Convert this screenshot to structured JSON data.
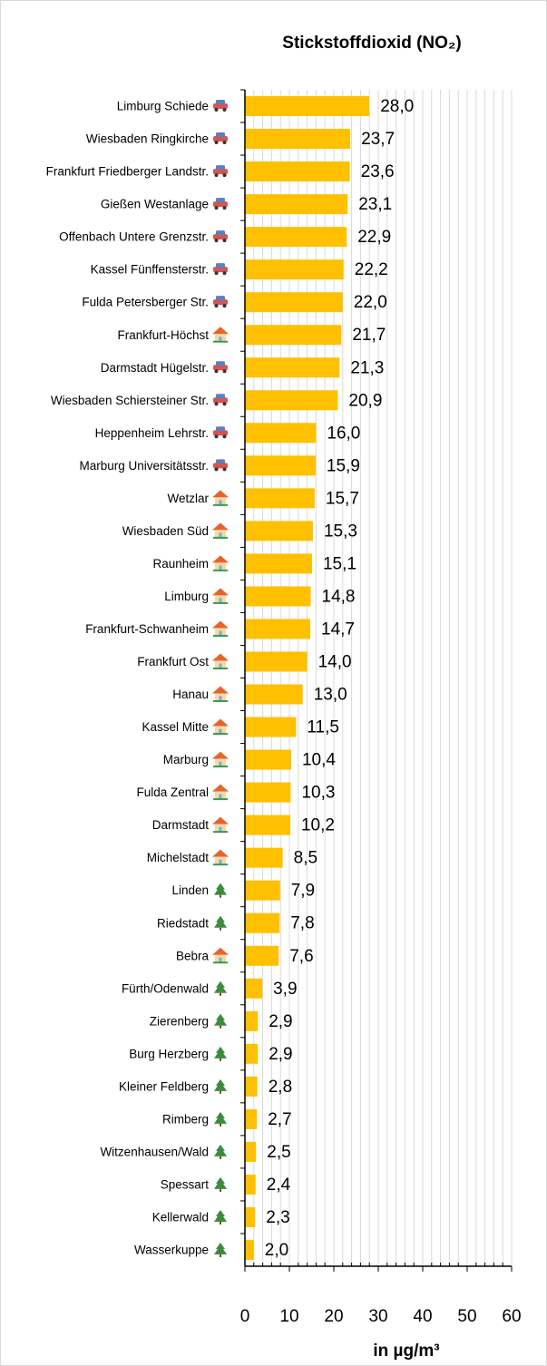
{
  "chart_data": {
    "type": "bar",
    "orientation": "horizontal",
    "title": "Stickstoffdioxid (NO₂)",
    "x_label": "in µg/m³",
    "color": "#ffc000",
    "categories": [
      "Limburg Schiede",
      "Wiesbaden Ringkirche",
      "Frankfurt Friedberger Landstr.",
      "Gießen Westanlage",
      "Offenbach Untere Grenzstr.",
      "Kassel Fünffensterstr.",
      "Fulda Petersberger Str.",
      "Frankfurt-Höchst",
      "Darmstadt Hügelstr.",
      "Wiesbaden Schiersteiner Str.",
      "Heppenheim Lehrstr.",
      "Marburg Universitätsstr.",
      "Wetzlar",
      "Wiesbaden Süd",
      "Raunheim",
      "Limburg",
      "Frankfurt-Schwanheim",
      "Frankfurt Ost",
      "Hanau",
      "Kassel Mitte",
      "Marburg",
      "Fulda Zentral",
      "Darmstadt",
      "Michelstadt",
      "Linden",
      "Riedstadt",
      "Bebra",
      "Fürth/Odenwald",
      "Zierenberg",
      "Burg Herzberg",
      "Kleiner Feldberg",
      "Rimberg",
      "Witzenhausen/Wald",
      "Spessart",
      "Kellerwald",
      "Wasserkuppe"
    ],
    "values": [
      28.0,
      23.7,
      23.6,
      23.1,
      22.9,
      22.2,
      22.0,
      21.7,
      21.3,
      20.9,
      16.0,
      15.9,
      15.7,
      15.3,
      15.1,
      14.8,
      14.7,
      14.0,
      13.0,
      11.5,
      10.4,
      10.3,
      10.2,
      8.5,
      7.9,
      7.8,
      7.6,
      3.9,
      2.9,
      2.9,
      2.8,
      2.7,
      2.5,
      2.4,
      2.3,
      2.0
    ],
    "value_labels": [
      "28,0",
      "23,7",
      "23,6",
      "23,1",
      "22,9",
      "22,2",
      "22,0",
      "21,7",
      "21,3",
      "20,9",
      "16,0",
      "15,9",
      "15,7",
      "15,3",
      "15,1",
      "14,8",
      "14,7",
      "14,0",
      "13,0",
      "11,5",
      "10,4",
      "10,3",
      "10,2",
      "8,5",
      "7,9",
      "7,8",
      "7,6",
      "3,9",
      "2,9",
      "2,9",
      "2,8",
      "2,7",
      "2,5",
      "2,4",
      "2,3",
      "2,0"
    ],
    "xlim": [
      0,
      60
    ],
    "xticks": [
      0,
      10,
      20,
      30,
      40,
      50,
      60
    ],
    "minor_xticks": [
      2,
      4,
      6,
      8,
      12,
      14,
      16,
      18,
      22,
      24,
      26,
      28,
      32,
      34,
      36,
      38,
      42,
      44,
      46,
      48,
      52,
      54,
      56,
      58
    ],
    "grid": true
  }
}
